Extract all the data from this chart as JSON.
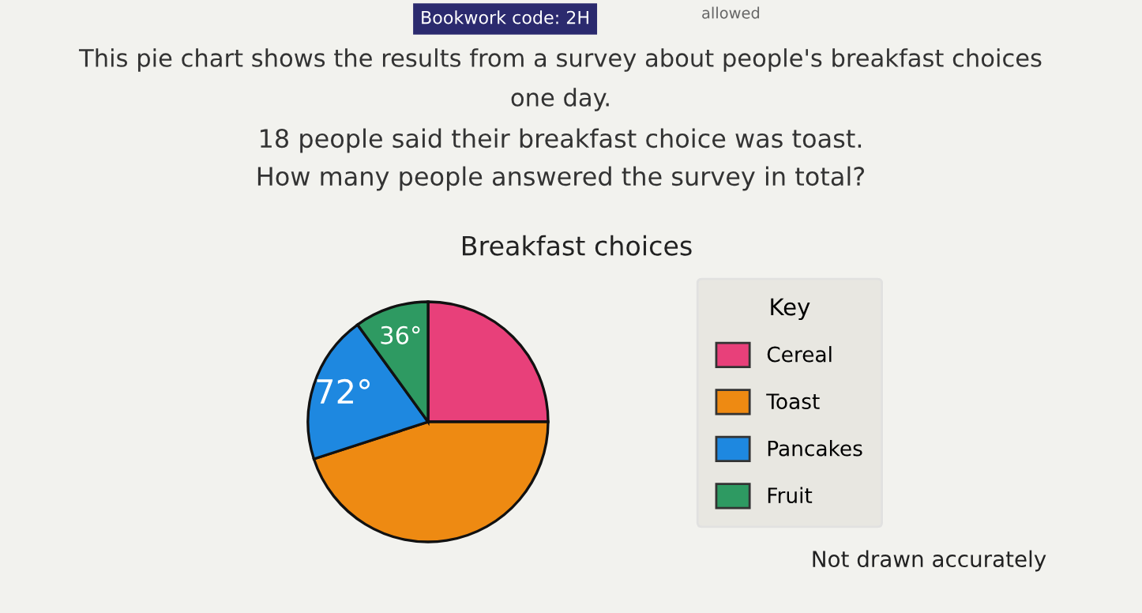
{
  "chart_data": {
    "type": "pie",
    "title": "Breakfast choices",
    "legend_title": "Key",
    "legend": "right",
    "categories": [
      "Cereal",
      "Toast",
      "Pancakes",
      "Fruit"
    ],
    "values": [
      90,
      162,
      72,
      36
    ],
    "colors": [
      "#e8407a",
      "#ee8a12",
      "#1e88e0",
      "#2e9a62"
    ],
    "value_labels": [
      null,
      null,
      "72°",
      "36°"
    ],
    "annotations": [
      "Bookwork code: 2H",
      "allowed",
      "This pie chart shows the results from a survey about people's breakfast choices",
      "one day.",
      "18 people said their breakfast choice was toast.",
      "How many people answered the survey in total?",
      "Not drawn accurately"
    ]
  }
}
